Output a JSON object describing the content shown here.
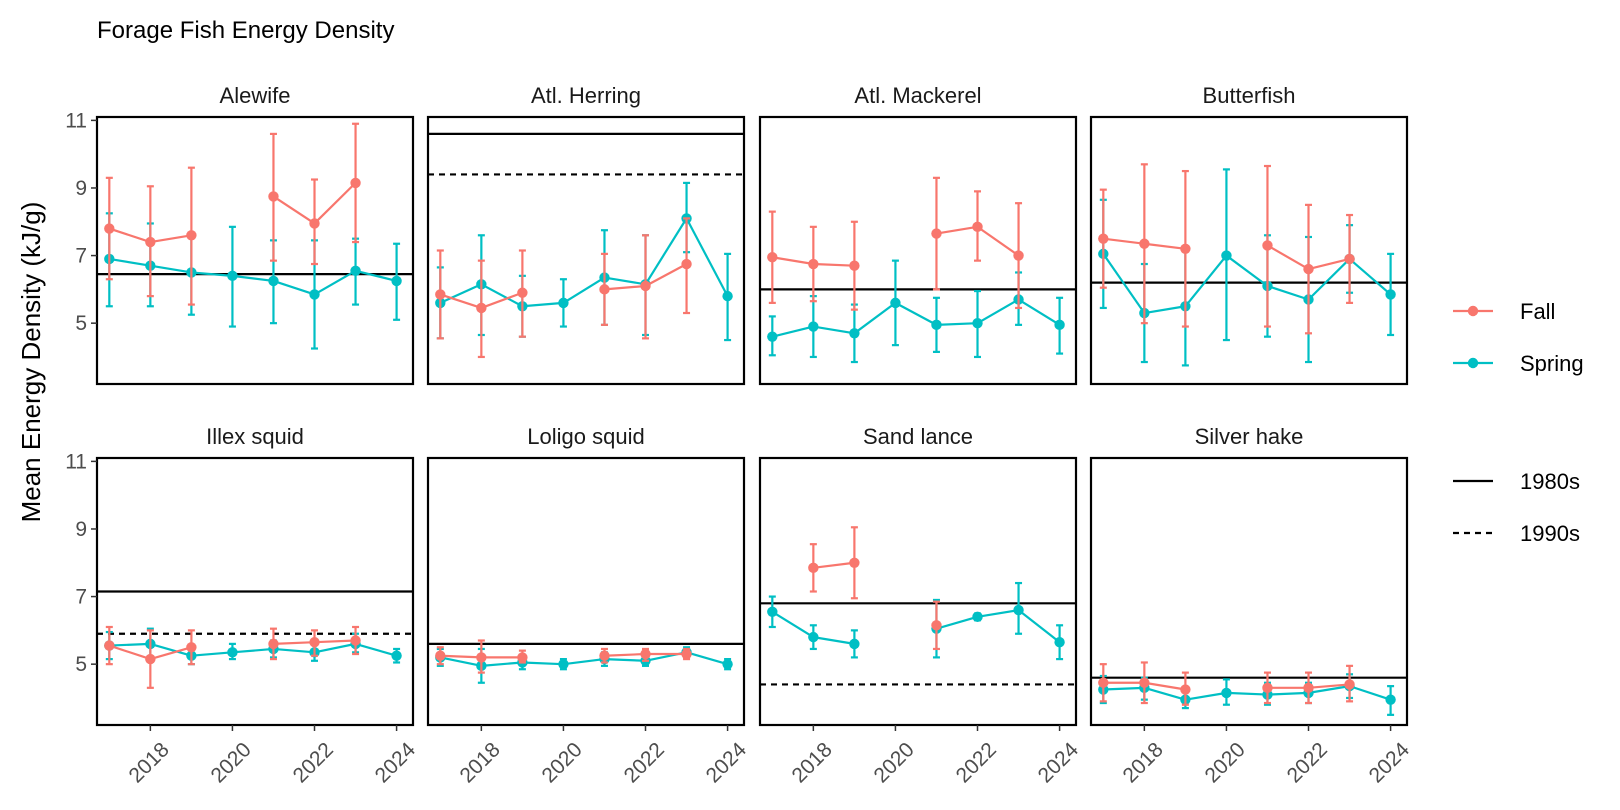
{
  "chart_data": {
    "type": "line",
    "title": "Forage Fish Energy Density",
    "ylabel": "Mean Energy Density (kJ/g)",
    "xlabel": "",
    "ylim": [
      3.2,
      11.1
    ],
    "xlim": [
      2016.7,
      2024.4
    ],
    "x_ticks": [
      2018,
      2020,
      2022,
      2024
    ],
    "y_ticks": [
      5,
      7,
      9,
      11
    ],
    "series_legend": [
      {
        "name": "Fall",
        "color": "#F8766D"
      },
      {
        "name": "Spring",
        "color": "#00BFC4"
      }
    ],
    "line_legend": [
      {
        "name": "1980s",
        "style": "solid"
      },
      {
        "name": "1990s",
        "style": "dashed"
      }
    ],
    "panels": [
      {
        "name": "Alewife",
        "ref_1980s": 6.45,
        "ref_1990s": null,
        "fall": [
          {
            "x": 2017,
            "y": 7.8,
            "lo": 6.3,
            "hi": 9.3
          },
          {
            "x": 2018,
            "y": 7.4,
            "lo": 5.8,
            "hi": 9.05
          },
          {
            "x": 2019,
            "y": 7.6,
            "lo": 5.55,
            "hi": 9.6
          },
          {
            "x": 2021,
            "y": 8.75,
            "lo": 6.85,
            "hi": 10.6
          },
          {
            "x": 2022,
            "y": 7.95,
            "lo": 6.75,
            "hi": 9.25
          },
          {
            "x": 2023,
            "y": 9.15,
            "lo": 7.4,
            "hi": 10.9
          }
        ],
        "spring": [
          {
            "x": 2017,
            "y": 6.9,
            "lo": 5.5,
            "hi": 8.25
          },
          {
            "x": 2018,
            "y": 6.7,
            "lo": 5.5,
            "hi": 7.95
          },
          {
            "x": 2019,
            "y": 6.5,
            "lo": 5.25,
            "hi": 7.6
          },
          {
            "x": 2020,
            "y": 6.4,
            "lo": 4.9,
            "hi": 7.85
          },
          {
            "x": 2021,
            "y": 6.25,
            "lo": 5.0,
            "hi": 7.45
          },
          {
            "x": 2022,
            "y": 5.85,
            "lo": 4.25,
            "hi": 7.45
          },
          {
            "x": 2023,
            "y": 6.55,
            "lo": 5.55,
            "hi": 7.5
          },
          {
            "x": 2024,
            "y": 6.25,
            "lo": 5.1,
            "hi": 7.35
          }
        ]
      },
      {
        "name": "Atl. Herring",
        "ref_1980s": 10.6,
        "ref_1990s": 9.4,
        "fall": [
          {
            "x": 2017,
            "y": 5.85,
            "lo": 4.55,
            "hi": 7.15
          },
          {
            "x": 2018,
            "y": 5.45,
            "lo": 4.0,
            "hi": 6.85
          },
          {
            "x": 2019,
            "y": 5.9,
            "lo": 4.6,
            "hi": 7.15
          },
          {
            "x": 2021,
            "y": 6.0,
            "lo": 4.95,
            "hi": 7.05
          },
          {
            "x": 2022,
            "y": 6.1,
            "lo": 4.55,
            "hi": 7.6
          },
          {
            "x": 2023,
            "y": 6.75,
            "lo": 5.3,
            "hi": 8.1
          }
        ],
        "spring": [
          {
            "x": 2017,
            "y": 5.6,
            "lo": 4.55,
            "hi": 6.65
          },
          {
            "x": 2018,
            "y": 6.15,
            "lo": 4.65,
            "hi": 7.6
          },
          {
            "x": 2019,
            "y": 5.5,
            "lo": 4.6,
            "hi": 6.4
          },
          {
            "x": 2020,
            "y": 5.6,
            "lo": 4.9,
            "hi": 6.3
          },
          {
            "x": 2021,
            "y": 6.35,
            "lo": 4.95,
            "hi": 7.75
          },
          {
            "x": 2022,
            "y": 6.15,
            "lo": 4.65,
            "hi": 7.6
          },
          {
            "x": 2023,
            "y": 8.1,
            "lo": 7.1,
            "hi": 9.15
          },
          {
            "x": 2024,
            "y": 5.8,
            "lo": 4.5,
            "hi": 7.05
          }
        ]
      },
      {
        "name": "Atl. Mackerel",
        "ref_1980s": 6.0,
        "ref_1990s": null,
        "fall": [
          {
            "x": 2017,
            "y": 6.95,
            "lo": 5.6,
            "hi": 8.3
          },
          {
            "x": 2018,
            "y": 6.75,
            "lo": 5.65,
            "hi": 7.85
          },
          {
            "x": 2019,
            "y": 6.7,
            "lo": 5.4,
            "hi": 8.0
          },
          {
            "x": 2021,
            "y": 7.65,
            "lo": 6.0,
            "hi": 9.3
          },
          {
            "x": 2022,
            "y": 7.85,
            "lo": 6.85,
            "hi": 8.9
          },
          {
            "x": 2023,
            "y": 7.0,
            "lo": 5.45,
            "hi": 8.55
          }
        ],
        "spring": [
          {
            "x": 2017,
            "y": 4.6,
            "lo": 4.05,
            "hi": 5.2
          },
          {
            "x": 2018,
            "y": 4.9,
            "lo": 4.0,
            "hi": 5.8
          },
          {
            "x": 2019,
            "y": 4.7,
            "lo": 3.85,
            "hi": 5.55
          },
          {
            "x": 2020,
            "y": 5.6,
            "lo": 4.35,
            "hi": 6.85
          },
          {
            "x": 2021,
            "y": 4.95,
            "lo": 4.15,
            "hi": 5.75
          },
          {
            "x": 2022,
            "y": 5.0,
            "lo": 4.0,
            "hi": 5.95
          },
          {
            "x": 2023,
            "y": 5.7,
            "lo": 4.95,
            "hi": 6.5
          },
          {
            "x": 2024,
            "y": 4.95,
            "lo": 4.1,
            "hi": 5.75
          }
        ]
      },
      {
        "name": "Butterfish",
        "ref_1980s": 6.2,
        "ref_1990s": null,
        "fall": [
          {
            "x": 2017,
            "y": 7.5,
            "lo": 6.05,
            "hi": 8.95
          },
          {
            "x": 2018,
            "y": 7.35,
            "lo": 5.0,
            "hi": 9.7
          },
          {
            "x": 2019,
            "y": 7.2,
            "lo": 4.9,
            "hi": 9.5
          },
          {
            "x": 2021,
            "y": 7.3,
            "lo": 4.9,
            "hi": 9.65
          },
          {
            "x": 2022,
            "y": 6.6,
            "lo": 4.7,
            "hi": 8.5
          },
          {
            "x": 2023,
            "y": 6.9,
            "lo": 5.6,
            "hi": 8.2
          }
        ],
        "spring": [
          {
            "x": 2017,
            "y": 7.05,
            "lo": 5.45,
            "hi": 8.65
          },
          {
            "x": 2018,
            "y": 5.3,
            "lo": 3.85,
            "hi": 6.75
          },
          {
            "x": 2019,
            "y": 5.5,
            "lo": 3.75,
            "hi": 7.25
          },
          {
            "x": 2020,
            "y": 7.0,
            "lo": 4.5,
            "hi": 9.55
          },
          {
            "x": 2021,
            "y": 6.1,
            "lo": 4.6,
            "hi": 7.6
          },
          {
            "x": 2022,
            "y": 5.7,
            "lo": 3.85,
            "hi": 7.55
          },
          {
            "x": 2023,
            "y": 6.9,
            "lo": 5.9,
            "hi": 7.9
          },
          {
            "x": 2024,
            "y": 5.85,
            "lo": 4.65,
            "hi": 7.05
          }
        ]
      },
      {
        "name": "Illex squid",
        "ref_1980s": 7.15,
        "ref_1990s": 5.9,
        "fall": [
          {
            "x": 2017,
            "y": 5.55,
            "lo": 5.0,
            "hi": 6.1
          },
          {
            "x": 2018,
            "y": 5.15,
            "lo": 4.3,
            "hi": 6.0
          },
          {
            "x": 2019,
            "y": 5.5,
            "lo": 5.0,
            "hi": 6.0
          },
          {
            "x": 2021,
            "y": 5.6,
            "lo": 5.15,
            "hi": 6.05
          },
          {
            "x": 2022,
            "y": 5.65,
            "lo": 5.25,
            "hi": 6.0
          },
          {
            "x": 2023,
            "y": 5.7,
            "lo": 5.3,
            "hi": 6.1
          }
        ],
        "spring": [
          {
            "x": 2017,
            "y": 5.55,
            "lo": 5.15,
            "hi": 5.95
          },
          {
            "x": 2018,
            "y": 5.6,
            "lo": 5.15,
            "hi": 6.05
          },
          {
            "x": 2019,
            "y": 5.25,
            "lo": 5.0,
            "hi": 5.55
          },
          {
            "x": 2020,
            "y": 5.35,
            "lo": 5.15,
            "hi": 5.6
          },
          {
            "x": 2021,
            "y": 5.45,
            "lo": 5.2,
            "hi": 5.7
          },
          {
            "x": 2022,
            "y": 5.35,
            "lo": 5.1,
            "hi": 5.6
          },
          {
            "x": 2023,
            "y": 5.6,
            "lo": 5.35,
            "hi": 5.9
          },
          {
            "x": 2024,
            "y": 5.25,
            "lo": 5.05,
            "hi": 5.45
          }
        ]
      },
      {
        "name": "Loligo squid",
        "ref_1980s": 5.6,
        "ref_1990s": null,
        "fall": [
          {
            "x": 2017,
            "y": 5.25,
            "lo": 5.0,
            "hi": 5.5
          },
          {
            "x": 2018,
            "y": 5.2,
            "lo": 4.75,
            "hi": 5.7
          },
          {
            "x": 2019,
            "y": 5.2,
            "lo": 5.05,
            "hi": 5.4
          },
          {
            "x": 2021,
            "y": 5.25,
            "lo": 5.05,
            "hi": 5.45
          },
          {
            "x": 2022,
            "y": 5.3,
            "lo": 5.1,
            "hi": 5.45
          },
          {
            "x": 2023,
            "y": 5.3,
            "lo": 5.15,
            "hi": 5.45
          }
        ],
        "spring": [
          {
            "x": 2017,
            "y": 5.2,
            "lo": 4.95,
            "hi": 5.45
          },
          {
            "x": 2018,
            "y": 4.95,
            "lo": 4.45,
            "hi": 5.45
          },
          {
            "x": 2019,
            "y": 5.05,
            "lo": 4.85,
            "hi": 5.25
          },
          {
            "x": 2020,
            "y": 5.0,
            "lo": 4.85,
            "hi": 5.15
          },
          {
            "x": 2021,
            "y": 5.15,
            "lo": 4.95,
            "hi": 5.35
          },
          {
            "x": 2022,
            "y": 5.1,
            "lo": 4.95,
            "hi": 5.25
          },
          {
            "x": 2023,
            "y": 5.35,
            "lo": 5.2,
            "hi": 5.5
          },
          {
            "x": 2024,
            "y": 5.0,
            "lo": 4.85,
            "hi": 5.15
          }
        ]
      },
      {
        "name": "Sand lance",
        "ref_1980s": 6.8,
        "ref_1990s": 4.4,
        "fall": [
          {
            "x": 2018,
            "y": 7.85,
            "lo": 7.15,
            "hi": 8.55
          },
          {
            "x": 2019,
            "y": 8.0,
            "lo": 6.95,
            "hi": 9.05
          },
          {
            "x": 2021,
            "y": 6.15,
            "lo": 5.45,
            "hi": 6.85
          }
        ],
        "spring": [
          {
            "x": 2017,
            "y": 6.55,
            "lo": 6.1,
            "hi": 7.0
          },
          {
            "x": 2018,
            "y": 5.8,
            "lo": 5.45,
            "hi": 6.15
          },
          {
            "x": 2019,
            "y": 5.6,
            "lo": 5.2,
            "hi": 6.0
          },
          {
            "x": 2021,
            "y": 6.05,
            "lo": 5.2,
            "hi": 6.9
          },
          {
            "x": 2022,
            "y": 6.4,
            "lo": 6.3,
            "hi": 6.5
          },
          {
            "x": 2023,
            "y": 6.6,
            "lo": 5.9,
            "hi": 7.4
          },
          {
            "x": 2024,
            "y": 5.65,
            "lo": 5.15,
            "hi": 6.15
          }
        ]
      },
      {
        "name": "Silver hake",
        "ref_1980s": 4.6,
        "ref_1990s": null,
        "fall": [
          {
            "x": 2017,
            "y": 4.45,
            "lo": 3.9,
            "hi": 5.0
          },
          {
            "x": 2018,
            "y": 4.45,
            "lo": 3.85,
            "hi": 5.05
          },
          {
            "x": 2019,
            "y": 4.25,
            "lo": 3.8,
            "hi": 4.75
          },
          {
            "x": 2021,
            "y": 4.3,
            "lo": 3.85,
            "hi": 4.75
          },
          {
            "x": 2022,
            "y": 4.3,
            "lo": 3.85,
            "hi": 4.75
          },
          {
            "x": 2023,
            "y": 4.4,
            "lo": 3.9,
            "hi": 4.95
          }
        ],
        "spring": [
          {
            "x": 2017,
            "y": 4.25,
            "lo": 3.85,
            "hi": 4.65
          },
          {
            "x": 2018,
            "y": 4.3,
            "lo": 3.95,
            "hi": 4.6
          },
          {
            "x": 2019,
            "y": 3.95,
            "lo": 3.7,
            "hi": 4.2
          },
          {
            "x": 2020,
            "y": 4.15,
            "lo": 3.8,
            "hi": 4.55
          },
          {
            "x": 2021,
            "y": 4.1,
            "lo": 3.8,
            "hi": 4.45
          },
          {
            "x": 2022,
            "y": 4.15,
            "lo": 3.85,
            "hi": 4.45
          },
          {
            "x": 2023,
            "y": 4.35,
            "lo": 4.0,
            "hi": 4.7
          },
          {
            "x": 2024,
            "y": 3.95,
            "lo": 3.5,
            "hi": 4.35
          }
        ]
      }
    ]
  }
}
